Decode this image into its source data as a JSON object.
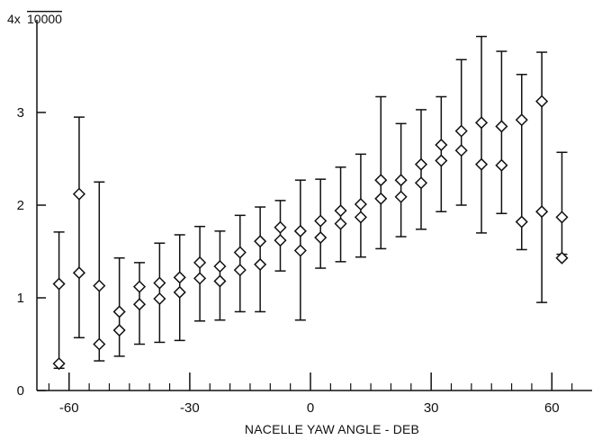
{
  "chart_data": {
    "type": "scatter",
    "title": "",
    "xlabel": "NACELLE YAW ANGLE - DEB",
    "ylabel": "",
    "y_multiplier_prefix": "4x",
    "y_multiplier_value": "10000",
    "xlim": [
      -68,
      70
    ],
    "ylim": [
      0,
      4
    ],
    "x_ticks": [
      -60,
      -30,
      0,
      30,
      60
    ],
    "x_minor_ticks": [
      -65,
      -55,
      -50,
      -45,
      -40,
      -35,
      -25,
      -20,
      -15,
      -10,
      -5,
      5,
      10,
      15,
      20,
      25,
      35,
      40,
      45,
      50,
      55,
      65
    ],
    "y_ticks": [
      0,
      1,
      2,
      3
    ],
    "grid": false,
    "marker": "diamond",
    "series": [
      {
        "values": [
          {
            "x": -62.5,
            "y": 0.29
          },
          {
            "x": -62.5,
            "y": 1.15
          },
          {
            "x": -57.5,
            "y": 2.12
          },
          {
            "x": -57.5,
            "y": 1.27
          },
          {
            "x": -52.5,
            "y": 0.5
          },
          {
            "x": -52.5,
            "y": 1.13
          },
          {
            "x": -47.5,
            "y": 0.65
          },
          {
            "x": -47.5,
            "y": 0.85
          },
          {
            "x": -42.5,
            "y": 0.93
          },
          {
            "x": -42.5,
            "y": 1.12
          },
          {
            "x": -37.5,
            "y": 0.99
          },
          {
            "x": -37.5,
            "y": 1.16
          },
          {
            "x": -32.5,
            "y": 1.06
          },
          {
            "x": -32.5,
            "y": 1.22
          },
          {
            "x": -27.5,
            "y": 1.21
          },
          {
            "x": -27.5,
            "y": 1.38
          },
          {
            "x": -22.5,
            "y": 1.18
          },
          {
            "x": -22.5,
            "y": 1.34
          },
          {
            "x": -17.5,
            "y": 1.3
          },
          {
            "x": -17.5,
            "y": 1.49
          },
          {
            "x": -12.5,
            "y": 1.36
          },
          {
            "x": -12.5,
            "y": 1.61
          },
          {
            "x": -7.5,
            "y": 1.62
          },
          {
            "x": -7.5,
            "y": 1.76
          },
          {
            "x": -2.5,
            "y": 1.51
          },
          {
            "x": -2.5,
            "y": 1.72
          },
          {
            "x": 2.5,
            "y": 1.65
          },
          {
            "x": 2.5,
            "y": 1.83
          },
          {
            "x": 7.5,
            "y": 1.8
          },
          {
            "x": 7.5,
            "y": 1.94
          },
          {
            "x": 12.5,
            "y": 1.87
          },
          {
            "x": 12.5,
            "y": 2.01
          },
          {
            "x": 17.5,
            "y": 2.07
          },
          {
            "x": 17.5,
            "y": 2.27
          },
          {
            "x": 22.5,
            "y": 2.09
          },
          {
            "x": 22.5,
            "y": 2.27
          },
          {
            "x": 27.5,
            "y": 2.24
          },
          {
            "x": 27.5,
            "y": 2.44
          },
          {
            "x": 32.5,
            "y": 2.48
          },
          {
            "x": 32.5,
            "y": 2.65
          },
          {
            "x": 37.5,
            "y": 2.59
          },
          {
            "x": 37.5,
            "y": 2.8
          },
          {
            "x": 42.5,
            "y": 2.44
          },
          {
            "x": 42.5,
            "y": 2.89
          },
          {
            "x": 47.5,
            "y": 2.43
          },
          {
            "x": 47.5,
            "y": 2.85
          },
          {
            "x": 52.5,
            "y": 1.82
          },
          {
            "x": 52.5,
            "y": 2.92
          },
          {
            "x": 57.5,
            "y": 1.93
          },
          {
            "x": 57.5,
            "y": 3.12
          },
          {
            "x": 62.5,
            "y": 1.43
          },
          {
            "x": 62.5,
            "y": 1.87
          }
        ]
      }
    ],
    "error_bars": [
      {
        "x": -62.5,
        "low": 0.24,
        "high": 1.71
      },
      {
        "x": -57.5,
        "low": 0.57,
        "high": 2.95
      },
      {
        "x": -52.5,
        "low": 0.32,
        "high": 2.25
      },
      {
        "x": -47.5,
        "low": 0.37,
        "high": 1.43
      },
      {
        "x": -42.5,
        "low": 0.5,
        "high": 1.38
      },
      {
        "x": -37.5,
        "low": 0.52,
        "high": 1.59
      },
      {
        "x": -32.5,
        "low": 0.54,
        "high": 1.68
      },
      {
        "x": -27.5,
        "low": 0.75,
        "high": 1.77
      },
      {
        "x": -22.5,
        "low": 0.76,
        "high": 1.72
      },
      {
        "x": -17.5,
        "low": 0.85,
        "high": 1.89
      },
      {
        "x": -12.5,
        "low": 0.85,
        "high": 1.98
      },
      {
        "x": -7.5,
        "low": 1.29,
        "high": 2.05
      },
      {
        "x": -2.5,
        "low": 0.76,
        "high": 2.27
      },
      {
        "x": 2.5,
        "low": 1.32,
        "high": 2.28
      },
      {
        "x": 7.5,
        "low": 1.39,
        "high": 2.41
      },
      {
        "x": 12.5,
        "low": 1.44,
        "high": 2.55
      },
      {
        "x": 17.5,
        "low": 1.53,
        "high": 3.17
      },
      {
        "x": 22.5,
        "low": 1.66,
        "high": 2.88
      },
      {
        "x": 27.5,
        "low": 1.74,
        "high": 3.03
      },
      {
        "x": 32.5,
        "low": 1.93,
        "high": 3.17
      },
      {
        "x": 37.5,
        "low": 2.0,
        "high": 3.57
      },
      {
        "x": 42.5,
        "low": 1.7,
        "high": 3.82
      },
      {
        "x": 47.5,
        "low": 1.91,
        "high": 3.66
      },
      {
        "x": 52.5,
        "low": 1.52,
        "high": 3.41
      },
      {
        "x": 57.5,
        "low": 0.95,
        "high": 3.65
      },
      {
        "x": 62.5,
        "low": 1.47,
        "high": 2.57
      }
    ],
    "colors": {
      "ink": "#111111",
      "background": "#ffffff"
    }
  }
}
